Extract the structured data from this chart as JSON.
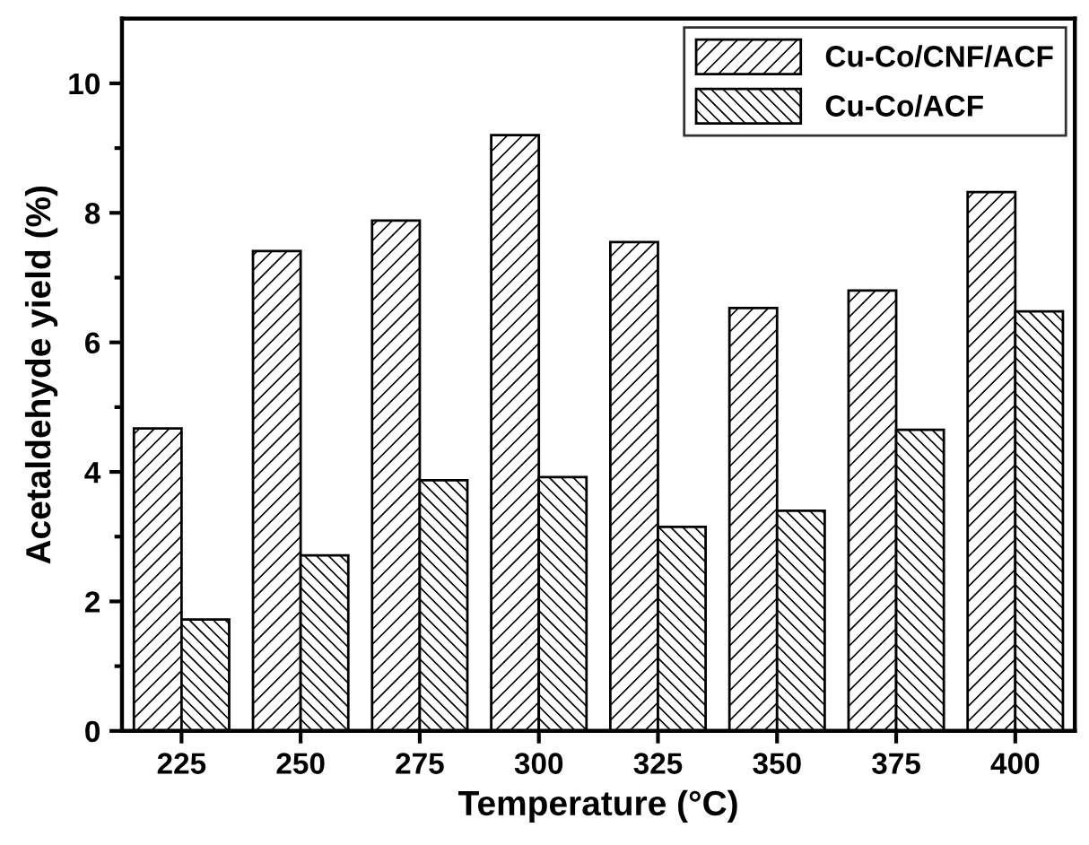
{
  "chart_data": {
    "type": "bar",
    "xlabel": "Temperature (°C)",
    "ylabel": "Acetaldehyde yield (%)",
    "categories": [
      "225",
      "250",
      "275",
      "300",
      "325",
      "350",
      "375",
      "400"
    ],
    "series": [
      {
        "name": "Cu-Co/CNF/ACF",
        "color": "#000000",
        "values": [
          4.67,
          7.41,
          7.88,
          9.2,
          7.55,
          6.53,
          6.8,
          8.32
        ]
      },
      {
        "name": "Cu-Co/ACF",
        "color": "#000000",
        "values": [
          1.72,
          2.71,
          3.87,
          3.92,
          3.15,
          3.4,
          4.65,
          6.48
        ]
      }
    ],
    "ylim": [
      0,
      11
    ],
    "yticks": [
      0,
      2,
      4,
      6,
      8,
      10
    ],
    "grid": false,
    "legend": "top right"
  }
}
